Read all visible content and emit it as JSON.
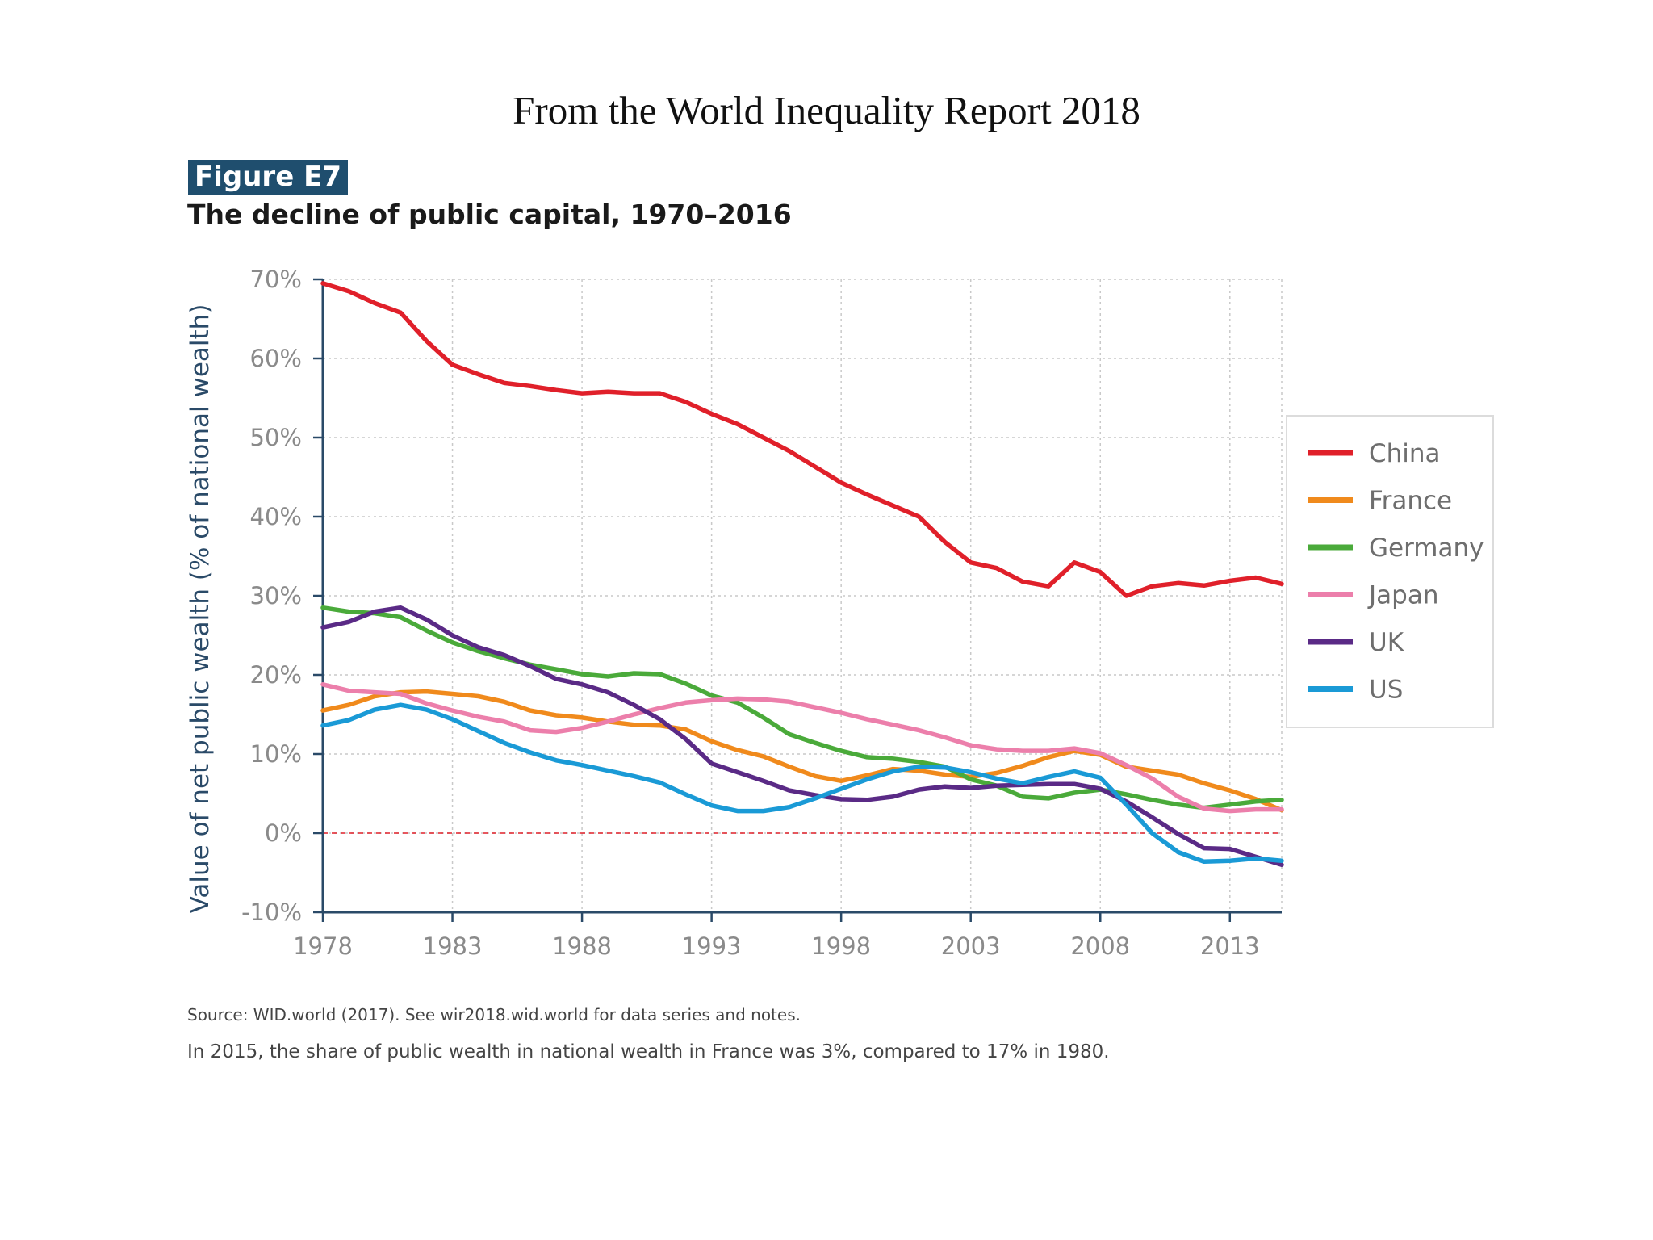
{
  "header": {
    "heading": "From the World Inequality Report 2018",
    "figure_label": "Figure E7",
    "figure_title": "The decline of public capital, 1970–2016"
  },
  "footer": {
    "source": "Source: WID.world (2017). See wir2018.wid.world for data series and notes.",
    "note": "In 2015, the share of public wealth in national wealth in France was 3%, compared to 17% in 1980."
  },
  "chart_data": {
    "type": "line",
    "title": "The decline of public capital, 1970–2016",
    "xlabel": "",
    "ylabel": "Value of net public wealth (% of national wealth)",
    "xlim": [
      1978,
      2015
    ],
    "ylim": [
      -10,
      70
    ],
    "x_ticks": [
      1978,
      1983,
      1988,
      1993,
      1998,
      2003,
      2008,
      2013
    ],
    "y_ticks": [
      -10,
      0,
      10,
      20,
      30,
      40,
      50,
      60,
      70
    ],
    "y_tick_labels": [
      "-10%",
      "0%",
      "10%",
      "20%",
      "30%",
      "40%",
      "50%",
      "60%",
      "70%"
    ],
    "grid": true,
    "zero_line": "dashed red",
    "legend_position": "right",
    "x": [
      1978,
      1979,
      1980,
      1981,
      1982,
      1983,
      1984,
      1985,
      1986,
      1987,
      1988,
      1989,
      1990,
      1991,
      1992,
      1993,
      1994,
      1995,
      1996,
      1997,
      1998,
      1999,
      2000,
      2001,
      2002,
      2003,
      2004,
      2005,
      2006,
      2007,
      2008,
      2009,
      2010,
      2011,
      2012,
      2013,
      2014,
      2015
    ],
    "series": [
      {
        "name": "China",
        "color": "#e0202a",
        "values": [
          69.5,
          68.5,
          67,
          65.8,
          62.2,
          59.2,
          58,
          56.9,
          56.5,
          56,
          55.6,
          55.8,
          55.6,
          55.6,
          54.5,
          53,
          51.7,
          50,
          48.3,
          46.3,
          44.3,
          42.8,
          41.4,
          40,
          36.8,
          34.2,
          33.5,
          31.8,
          31.2,
          34.2,
          33,
          30,
          31.2,
          31.6,
          31.3,
          31.9,
          32.3,
          31.5
        ]
      },
      {
        "name": "France",
        "color": "#f08a1c",
        "values": [
          15.5,
          16.2,
          17.3,
          17.8,
          17.9,
          17.6,
          17.3,
          16.6,
          15.5,
          14.9,
          14.6,
          14.1,
          13.7,
          13.6,
          13.1,
          11.6,
          10.5,
          9.7,
          8.4,
          7.2,
          6.6,
          7.3,
          8.1,
          7.9,
          7.4,
          7.1,
          7.6,
          8.5,
          9.6,
          10.4,
          9.9,
          8.4,
          7.9,
          7.4,
          6.3,
          5.4,
          4.3,
          2.9
        ]
      },
      {
        "name": "Germany",
        "color": "#4aaa3a",
        "values": [
          28.5,
          28,
          27.8,
          27.3,
          25.6,
          24.1,
          23,
          22.1,
          21.3,
          20.7,
          20.1,
          19.8,
          20.2,
          20.1,
          18.9,
          17.4,
          16.5,
          14.6,
          12.5,
          11.4,
          10.4,
          9.6,
          9.4,
          9,
          8.4,
          6.8,
          6,
          4.6,
          4.4,
          5.1,
          5.5,
          4.9,
          4.2,
          3.6,
          3.2,
          3.6,
          4,
          4.2
        ]
      },
      {
        "name": "Japan",
        "color": "#ec7fab",
        "values": [
          18.8,
          18,
          17.8,
          17.6,
          16.4,
          15.5,
          14.7,
          14.1,
          13,
          12.8,
          13.3,
          14.1,
          15,
          15.8,
          16.5,
          16.8,
          17,
          16.9,
          16.6,
          15.9,
          15.2,
          14.4,
          13.7,
          13,
          12.1,
          11.1,
          10.6,
          10.4,
          10.4,
          10.7,
          10.1,
          8.6,
          6.9,
          4.6,
          3.1,
          2.8,
          3,
          3
        ]
      },
      {
        "name": "UK",
        "color": "#5a2a86",
        "values": [
          26,
          26.7,
          28,
          28.5,
          27,
          25,
          23.5,
          22.5,
          21.1,
          19.5,
          18.8,
          17.8,
          16.2,
          14.4,
          11.9,
          8.8,
          7.7,
          6.6,
          5.4,
          4.8,
          4.3,
          4.2,
          4.6,
          5.5,
          5.9,
          5.7,
          6,
          6.1,
          6.2,
          6.2,
          5.6,
          4,
          2,
          -0.1,
          -1.9,
          -2,
          -3,
          -4
        ]
      },
      {
        "name": "US",
        "color": "#1a9ad6",
        "values": [
          13.6,
          14.3,
          15.6,
          16.2,
          15.6,
          14.4,
          12.9,
          11.4,
          10.2,
          9.2,
          8.6,
          7.9,
          7.2,
          6.4,
          4.9,
          3.5,
          2.8,
          2.8,
          3.3,
          4.4,
          5.6,
          6.8,
          7.8,
          8.4,
          8.3,
          7.7,
          6.9,
          6.3,
          7.1,
          7.8,
          7,
          3.6,
          0,
          -2.4,
          -3.6,
          -3.5,
          -3.2,
          -3.5
        ]
      }
    ]
  }
}
